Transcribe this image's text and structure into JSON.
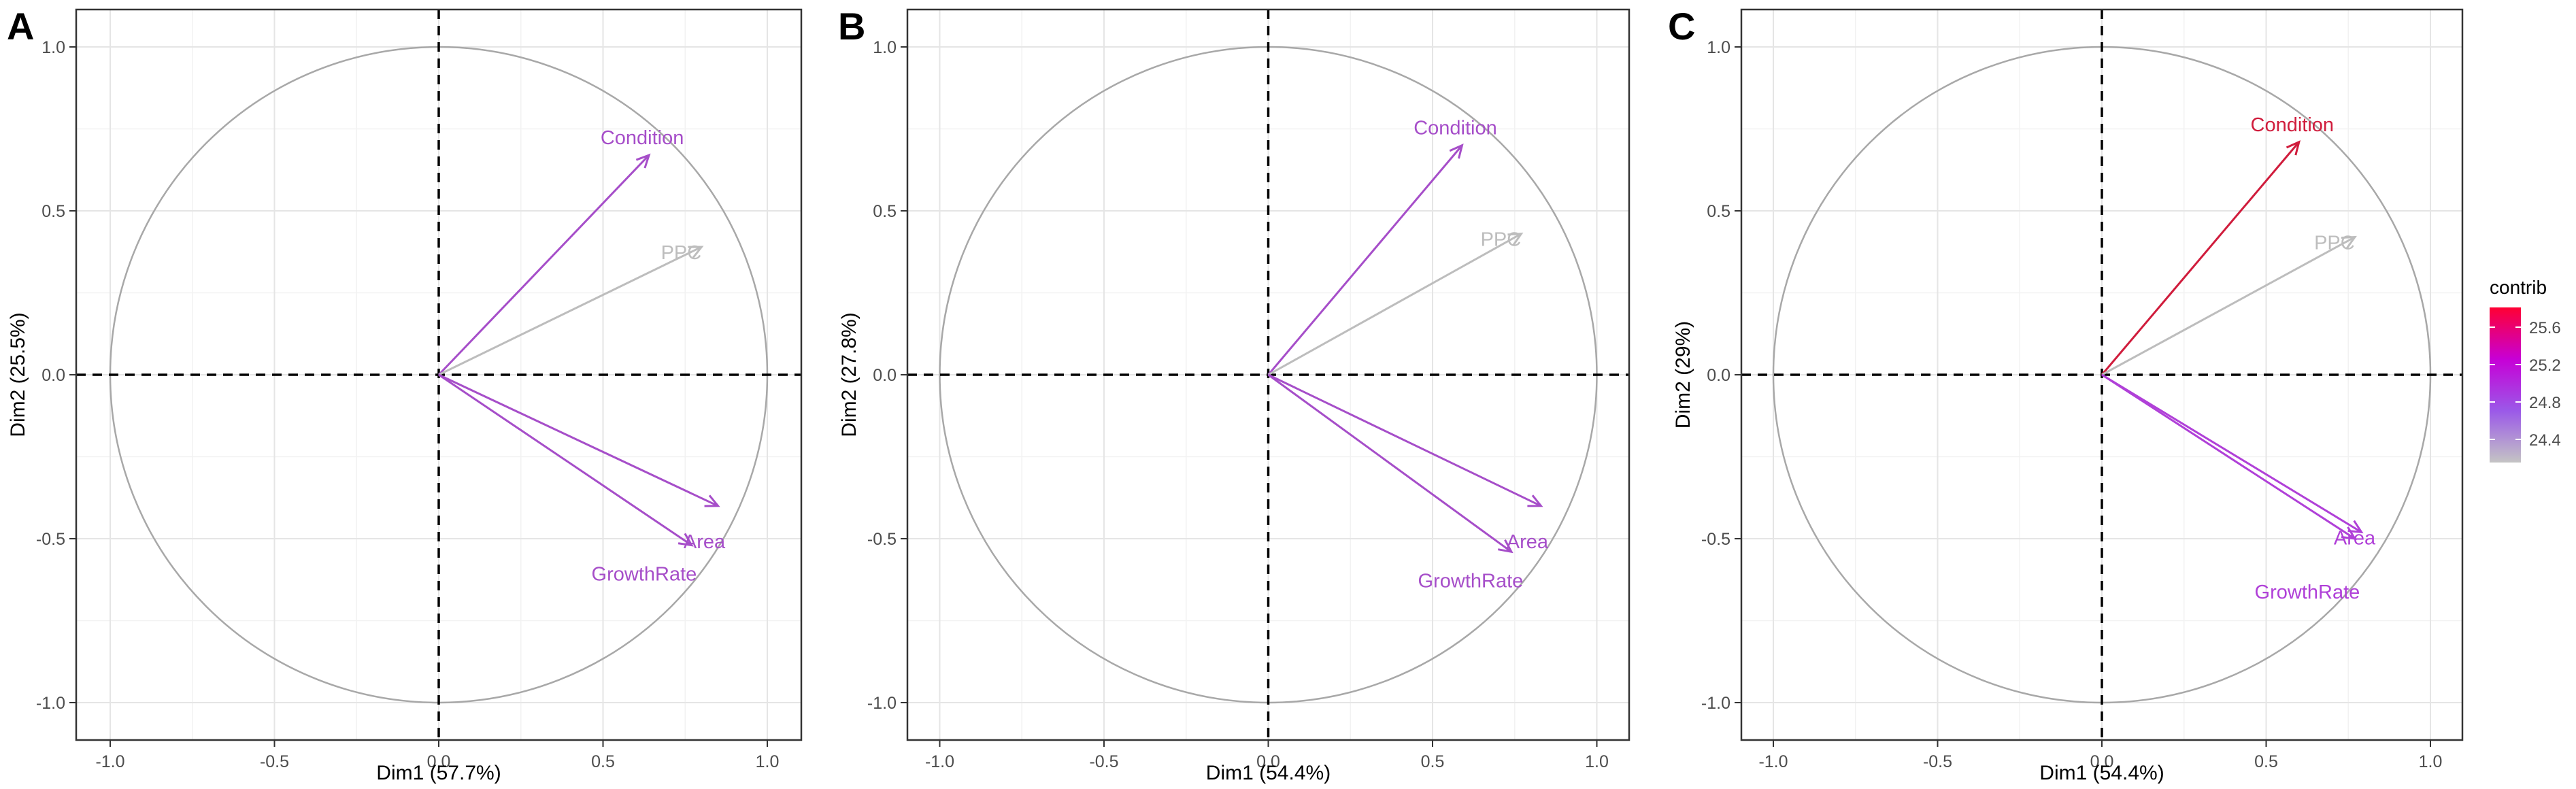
{
  "chart_data": [
    {
      "panel_label": "A",
      "type": "pca_correlation_circle",
      "xlabel": "Dim1 (57.7%)",
      "ylabel": "Dim2 (25.5%)",
      "xlim": [
        -1.0,
        1.0
      ],
      "ylim": [
        -1.0,
        1.0
      ],
      "x_ticks": [
        "-1.0",
        "-0.5",
        "0.0",
        "0.5",
        "1.0"
      ],
      "y_ticks": [
        "-1.0",
        "-0.5",
        "0.0",
        "0.5",
        "1.0"
      ],
      "grid": true,
      "variables": [
        {
          "name": "Condition",
          "x": 0.64,
          "y": 0.67,
          "color": "#a64ec9"
        },
        {
          "name": "PPC",
          "x": 0.8,
          "y": 0.39,
          "color": "#bdbdbd"
        },
        {
          "name": "Area",
          "x": 0.85,
          "y": -0.4,
          "color": "#a64ec9"
        },
        {
          "name": "GrowthRate",
          "x": 0.77,
          "y": -0.52,
          "color": "#a64ec9"
        }
      ]
    },
    {
      "panel_label": "B",
      "type": "pca_correlation_circle",
      "xlabel": "Dim1 (54.4%)",
      "ylabel": "Dim2 (27.8%)",
      "xlim": [
        -1.0,
        1.0
      ],
      "ylim": [
        -1.0,
        1.0
      ],
      "x_ticks": [
        "-1.0",
        "-0.5",
        "0.0",
        "0.5",
        "1.0"
      ],
      "y_ticks": [
        "-1.0",
        "-0.5",
        "0.0",
        "0.5",
        "1.0"
      ],
      "grid": true,
      "variables": [
        {
          "name": "Condition",
          "x": 0.59,
          "y": 0.7,
          "color": "#a64ec9"
        },
        {
          "name": "PPC",
          "x": 0.77,
          "y": 0.43,
          "color": "#bdbdbd"
        },
        {
          "name": "Area",
          "x": 0.83,
          "y": -0.4,
          "color": "#a64ec9"
        },
        {
          "name": "GrowthRate",
          "x": 0.74,
          "y": -0.54,
          "color": "#a64ec9"
        }
      ]
    },
    {
      "panel_label": "C",
      "type": "pca_correlation_circle",
      "xlabel": "Dim1 (54.4%)",
      "ylabel": "Dim2 (29%)",
      "xlim": [
        -1.0,
        1.0
      ],
      "ylim": [
        -1.0,
        1.0
      ],
      "x_ticks": [
        "-1.0",
        "-0.5",
        "0.0",
        "0.5",
        "1.0"
      ],
      "y_ticks": [
        "-1.0",
        "-0.5",
        "0.0",
        "0.5",
        "1.0"
      ],
      "grid": true,
      "variables": [
        {
          "name": "Condition",
          "x": 0.6,
          "y": 0.71,
          "color": "#d01c3c"
        },
        {
          "name": "PPC",
          "x": 0.77,
          "y": 0.42,
          "color": "#bdbdbd"
        },
        {
          "name": "Area",
          "x": 0.79,
          "y": -0.48,
          "color": "#b040d8"
        },
        {
          "name": "GrowthRate",
          "x": 0.77,
          "y": -0.5,
          "color": "#b040d8"
        }
      ],
      "legend": {
        "title": "contrib",
        "ticks": [
          "25.6",
          "25.2",
          "24.8",
          "24.4"
        ],
        "gradient_colors": [
          "#ff0033",
          "#c700d6",
          "#9b59e8",
          "#c4c4c4"
        ]
      }
    }
  ]
}
